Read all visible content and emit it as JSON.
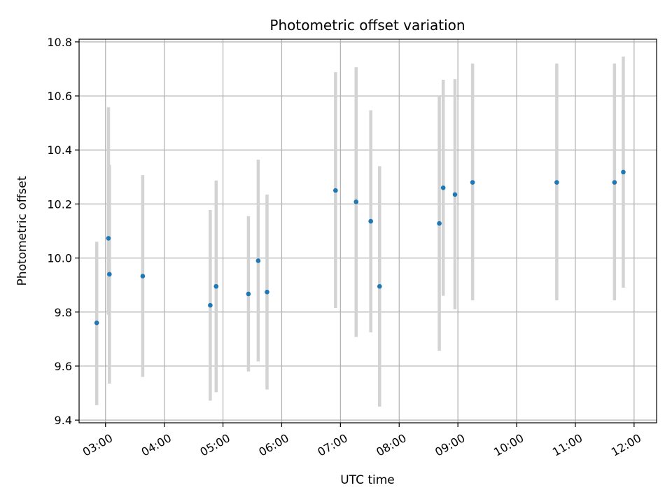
{
  "chart_data": {
    "type": "scatter",
    "title": "Photometric offset variation",
    "xlabel": "UTC time",
    "ylabel": "Photometric offset",
    "xlim": [
      "02:33",
      "12:23"
    ],
    "ylim": [
      9.39,
      10.81
    ],
    "grid": true,
    "x_ticks": [
      "03:00",
      "04:00",
      "05:00",
      "06:00",
      "07:00",
      "08:00",
      "09:00",
      "10:00",
      "11:00",
      "12:00"
    ],
    "y_ticks": [
      9.4,
      9.6,
      9.8,
      10.0,
      10.2,
      10.4,
      10.6,
      10.8
    ],
    "y_tick_labels": [
      "9.4",
      "9.6",
      "9.8",
      "10.0",
      "10.2",
      "10.4",
      "10.6",
      "10.8"
    ],
    "colors": {
      "point": "#1f77b4",
      "errorbar": "#d3d3d3",
      "grid": "#b0b0b0"
    },
    "series": [
      {
        "points": [
          {
            "t": "02:51",
            "y": 9.76,
            "low": 9.455,
            "high": 10.06
          },
          {
            "t": "03:03",
            "y": 10.073,
            "low": 9.79,
            "high": 10.558
          },
          {
            "t": "03:04",
            "y": 9.94,
            "low": 9.535,
            "high": 10.345
          },
          {
            "t": "03:38",
            "y": 9.933,
            "low": 9.56,
            "high": 10.307
          },
          {
            "t": "04:47",
            "y": 9.825,
            "low": 9.472,
            "high": 10.178
          },
          {
            "t": "04:53",
            "y": 9.895,
            "low": 9.503,
            "high": 10.287
          },
          {
            "t": "05:26",
            "y": 9.867,
            "low": 9.58,
            "high": 10.155
          },
          {
            "t": "05:36",
            "y": 9.99,
            "low": 9.617,
            "high": 10.364
          },
          {
            "t": "05:45",
            "y": 9.874,
            "low": 9.513,
            "high": 10.235
          },
          {
            "t": "06:55",
            "y": 10.25,
            "low": 9.815,
            "high": 10.688
          },
          {
            "t": "07:16",
            "y": 10.208,
            "low": 9.708,
            "high": 10.706
          },
          {
            "t": "07:31",
            "y": 10.136,
            "low": 9.725,
            "high": 10.547
          },
          {
            "t": "07:40",
            "y": 9.895,
            "low": 9.45,
            "high": 10.34
          },
          {
            "t": "08:41",
            "y": 10.128,
            "low": 9.657,
            "high": 10.6
          },
          {
            "t": "08:45",
            "y": 10.26,
            "low": 9.86,
            "high": 10.66
          },
          {
            "t": "08:57",
            "y": 10.235,
            "low": 9.81,
            "high": 10.662
          },
          {
            "t": "09:15",
            "y": 10.28,
            "low": 9.843,
            "high": 10.72
          },
          {
            "t": "10:41",
            "y": 10.28,
            "low": 9.843,
            "high": 10.72
          },
          {
            "t": "11:40",
            "y": 10.28,
            "low": 9.843,
            "high": 10.72
          },
          {
            "t": "11:49",
            "y": 10.318,
            "low": 9.89,
            "high": 10.746
          }
        ]
      }
    ]
  }
}
